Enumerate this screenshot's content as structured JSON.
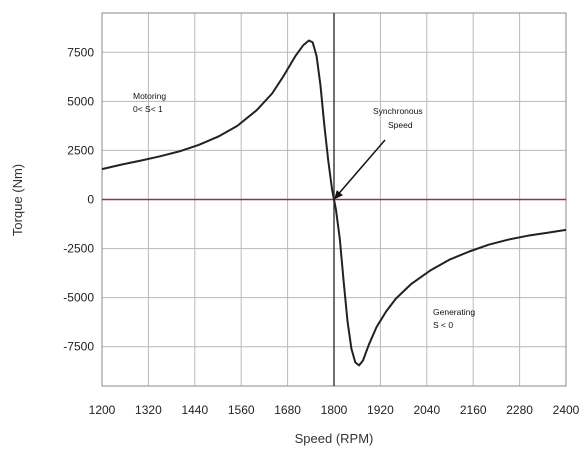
{
  "chart_data": {
    "type": "line",
    "title": "",
    "xlabel": "Speed (RPM)",
    "ylabel": "Torque (Nm)",
    "xlim": [
      1200,
      2400
    ],
    "ylim": [
      -9500,
      9500
    ],
    "xticks": [
      1200,
      1320,
      1440,
      1560,
      1680,
      1800,
      1920,
      2040,
      2160,
      2280,
      2400
    ],
    "yticks": [
      7500,
      5000,
      2500,
      0,
      -2500,
      -5000,
      -7500
    ],
    "xtick_labels": [
      "1200",
      "1320",
      "1440",
      "1560",
      "1680",
      "1800",
      "1920",
      "2040",
      "2160",
      "2280",
      "2400"
    ],
    "ytick_labels": [
      "7500",
      "5000",
      "2500",
      "0",
      "-2500",
      "-5000",
      "-7500"
    ],
    "grid": true,
    "colors": {
      "curve": "#222222",
      "grid": "#b8b8b8",
      "zero_line": "#8b3a3a",
      "sync_line": "#333333",
      "frame": "#888888"
    },
    "series": [
      {
        "x": [
          1200,
          1250,
          1300,
          1350,
          1400,
          1450,
          1500,
          1550,
          1600,
          1640,
          1670,
          1700,
          1720,
          1735,
          1745,
          1755,
          1765,
          1775,
          1785,
          1795,
          1800,
          1805,
          1815,
          1825,
          1835,
          1845,
          1855,
          1865,
          1875,
          1890,
          1910,
          1935,
          1960,
          2000,
          2050,
          2100,
          2150,
          2200,
          2250,
          2300,
          2350,
          2400
        ],
        "y": [
          1550,
          1780,
          1980,
          2200,
          2450,
          2780,
          3200,
          3750,
          4550,
          5400,
          6300,
          7300,
          7850,
          8100,
          8000,
          7300,
          5800,
          3800,
          2000,
          500,
          0,
          -500,
          -2000,
          -4200,
          -6200,
          -7600,
          -8300,
          -8450,
          -8200,
          -7400,
          -6500,
          -5700,
          -5050,
          -4300,
          -3600,
          -3050,
          -2650,
          -2300,
          -2050,
          -1850,
          -1700,
          -1550
        ]
      }
    ],
    "annotations": [
      {
        "lines": [
          "Motoring",
          "0< S< 1"
        ]
      },
      {
        "lines": [
          "Synchronous",
          "Speed"
        ]
      },
      {
        "lines": [
          "Generating",
          "S < 0"
        ]
      }
    ]
  }
}
